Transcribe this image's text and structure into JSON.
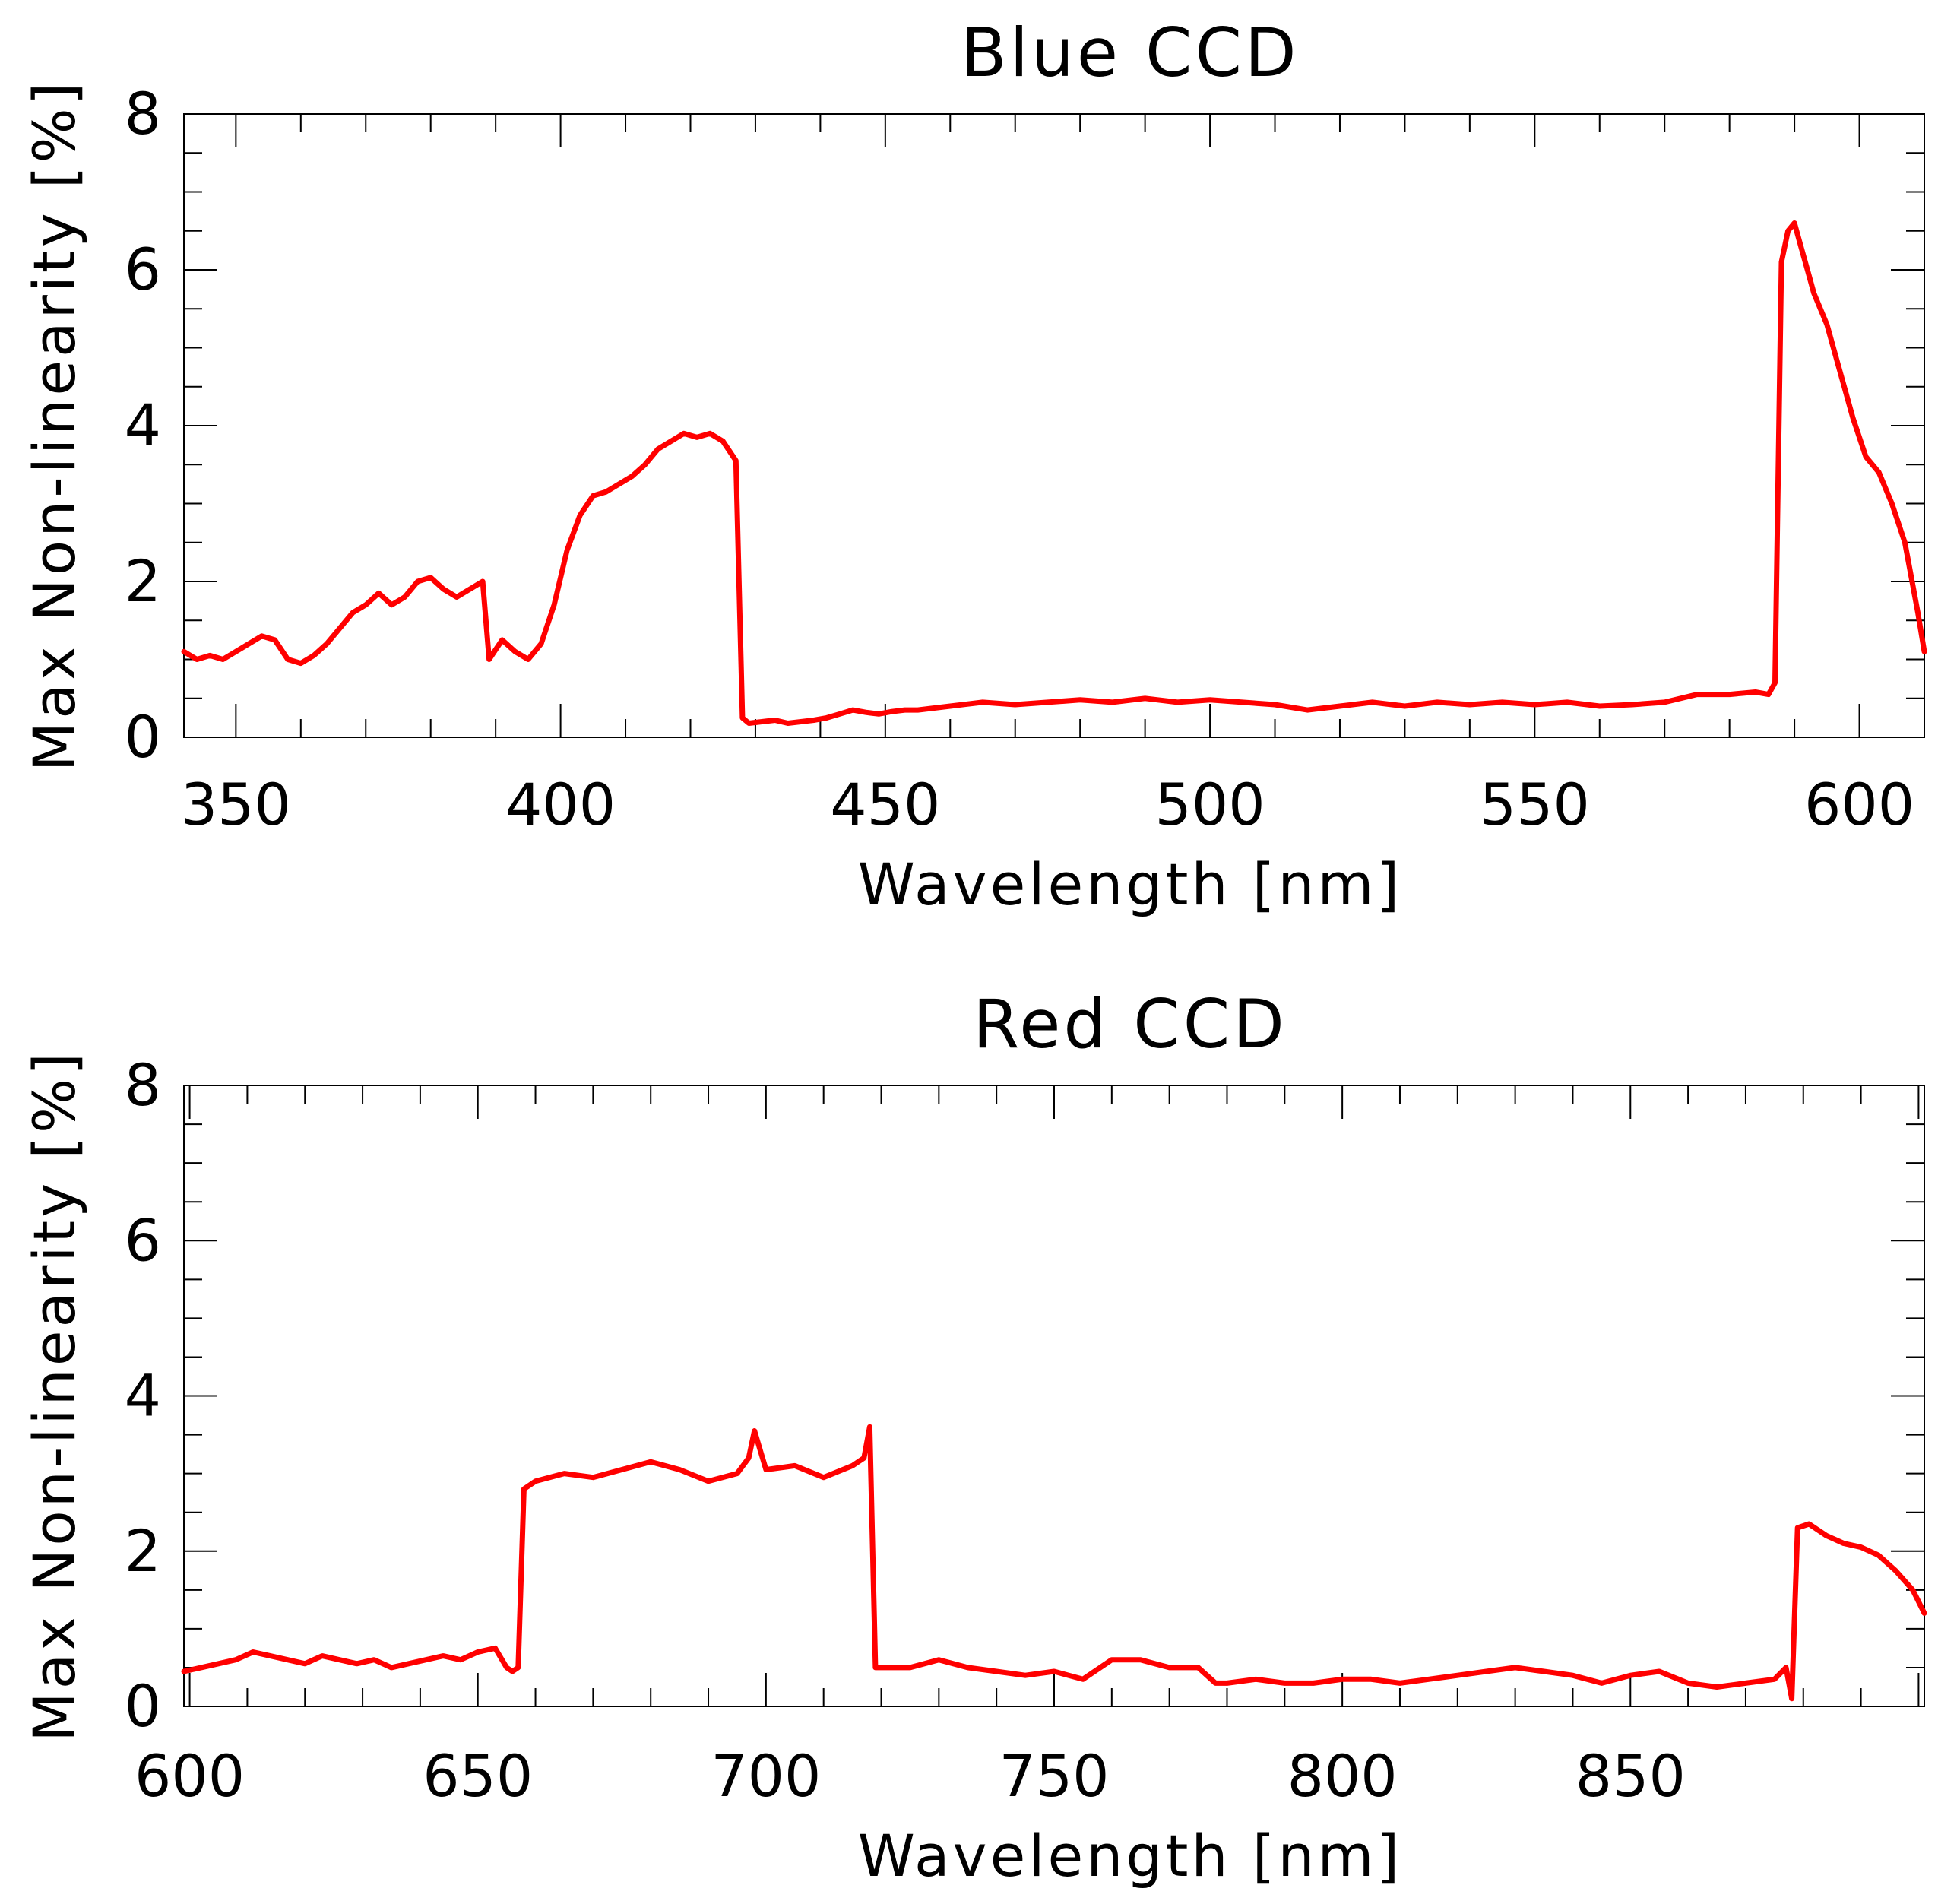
{
  "chart_data": [
    {
      "type": "line",
      "title": "Blue CCD",
      "xlabel": "Wavelength [nm]",
      "ylabel": "Max Non-linearity [%]",
      "xlim": [
        342,
        610
      ],
      "ylim": [
        0,
        8
      ],
      "xticks": [
        350,
        400,
        450,
        500,
        550,
        600
      ],
      "yticks": [
        0,
        2,
        4,
        6,
        8
      ],
      "grid": false,
      "series": [
        {
          "color": "#ff0000",
          "x": [
            342,
            344,
            346,
            348,
            350,
            352,
            354,
            356,
            358,
            360,
            362,
            364,
            366,
            368,
            370,
            372,
            374,
            376,
            378,
            380,
            382,
            384,
            386,
            388,
            389,
            391,
            393,
            395,
            397,
            399,
            401,
            403,
            405,
            407,
            409,
            411,
            413,
            415,
            417,
            419,
            421,
            423,
            425,
            427,
            428,
            429,
            431,
            433,
            435,
            437,
            439,
            441,
            443,
            445,
            447,
            449,
            451,
            453,
            455,
            460,
            465,
            470,
            475,
            480,
            485,
            490,
            495,
            500,
            505,
            510,
            515,
            520,
            525,
            530,
            535,
            540,
            545,
            550,
            555,
            560,
            565,
            570,
            575,
            580,
            584,
            586,
            587,
            588,
            589,
            590,
            591,
            592,
            593,
            595,
            597,
            599,
            601,
            603,
            605,
            607,
            609,
            610
          ],
          "y": [
            1.1,
            1.0,
            1.05,
            1.0,
            1.1,
            1.2,
            1.3,
            1.25,
            1.0,
            0.95,
            1.05,
            1.2,
            1.4,
            1.6,
            1.7,
            1.85,
            1.7,
            1.8,
            2.0,
            2.05,
            1.9,
            1.8,
            1.9,
            2.0,
            1.0,
            1.25,
            1.1,
            1.0,
            1.2,
            1.7,
            2.4,
            2.85,
            3.1,
            3.15,
            3.25,
            3.35,
            3.5,
            3.7,
            3.8,
            3.9,
            3.85,
            3.9,
            3.8,
            3.55,
            0.25,
            0.18,
            0.2,
            0.22,
            0.18,
            0.2,
            0.22,
            0.25,
            0.3,
            0.35,
            0.32,
            0.3,
            0.33,
            0.35,
            0.35,
            0.4,
            0.45,
            0.42,
            0.45,
            0.48,
            0.45,
            0.5,
            0.45,
            0.48,
            0.45,
            0.42,
            0.35,
            0.4,
            0.45,
            0.4,
            0.45,
            0.42,
            0.45,
            0.42,
            0.45,
            0.4,
            0.42,
            0.45,
            0.55,
            0.55,
            0.58,
            0.55,
            0.7,
            6.1,
            6.5,
            6.6,
            6.3,
            6.0,
            5.7,
            5.3,
            4.7,
            4.1,
            3.6,
            3.4,
            3.0,
            2.5,
            1.6,
            1.1
          ]
        }
      ]
    },
    {
      "type": "line",
      "title": "Red CCD",
      "xlabel": "Wavelength [nm]",
      "ylabel": "Max Non-linearity [%]",
      "xlim": [
        599,
        901
      ],
      "ylim": [
        0,
        8
      ],
      "xticks": [
        600,
        650,
        700,
        750,
        800,
        850
      ],
      "yticks": [
        0,
        2,
        4,
        6,
        8
      ],
      "grid": false,
      "series": [
        {
          "color": "#ff0000",
          "x": [
            599,
            602,
            605,
            608,
            611,
            614,
            617,
            620,
            623,
            626,
            629,
            632,
            635,
            638,
            641,
            644,
            647,
            650,
            653,
            655,
            656,
            657,
            658,
            660,
            665,
            670,
            675,
            680,
            685,
            690,
            695,
            697,
            698,
            700,
            705,
            710,
            715,
            717,
            718,
            719,
            722,
            725,
            730,
            735,
            740,
            745,
            750,
            755,
            760,
            765,
            770,
            775,
            778,
            780,
            785,
            790,
            795,
            800,
            805,
            810,
            815,
            820,
            825,
            830,
            835,
            840,
            845,
            850,
            855,
            860,
            865,
            870,
            875,
            877,
            878,
            879,
            881,
            884,
            887,
            890,
            893,
            896,
            899,
            901
          ],
          "y": [
            0.45,
            0.5,
            0.55,
            0.6,
            0.7,
            0.65,
            0.6,
            0.55,
            0.65,
            0.6,
            0.55,
            0.6,
            0.5,
            0.55,
            0.6,
            0.65,
            0.6,
            0.7,
            0.75,
            0.5,
            0.45,
            0.5,
            2.8,
            2.9,
            3.0,
            2.95,
            3.05,
            3.15,
            3.05,
            2.9,
            3.0,
            3.2,
            3.55,
            3.05,
            3.1,
            2.95,
            3.1,
            3.2,
            3.6,
            0.5,
            0.5,
            0.5,
            0.6,
            0.5,
            0.45,
            0.4,
            0.45,
            0.35,
            0.6,
            0.6,
            0.5,
            0.5,
            0.3,
            0.3,
            0.35,
            0.3,
            0.3,
            0.35,
            0.35,
            0.3,
            0.35,
            0.4,
            0.45,
            0.5,
            0.45,
            0.4,
            0.3,
            0.4,
            0.45,
            0.3,
            0.25,
            0.3,
            0.35,
            0.5,
            0.1,
            2.3,
            2.35,
            2.2,
            2.1,
            2.05,
            1.95,
            1.75,
            1.5,
            1.2
          ]
        }
      ]
    }
  ]
}
